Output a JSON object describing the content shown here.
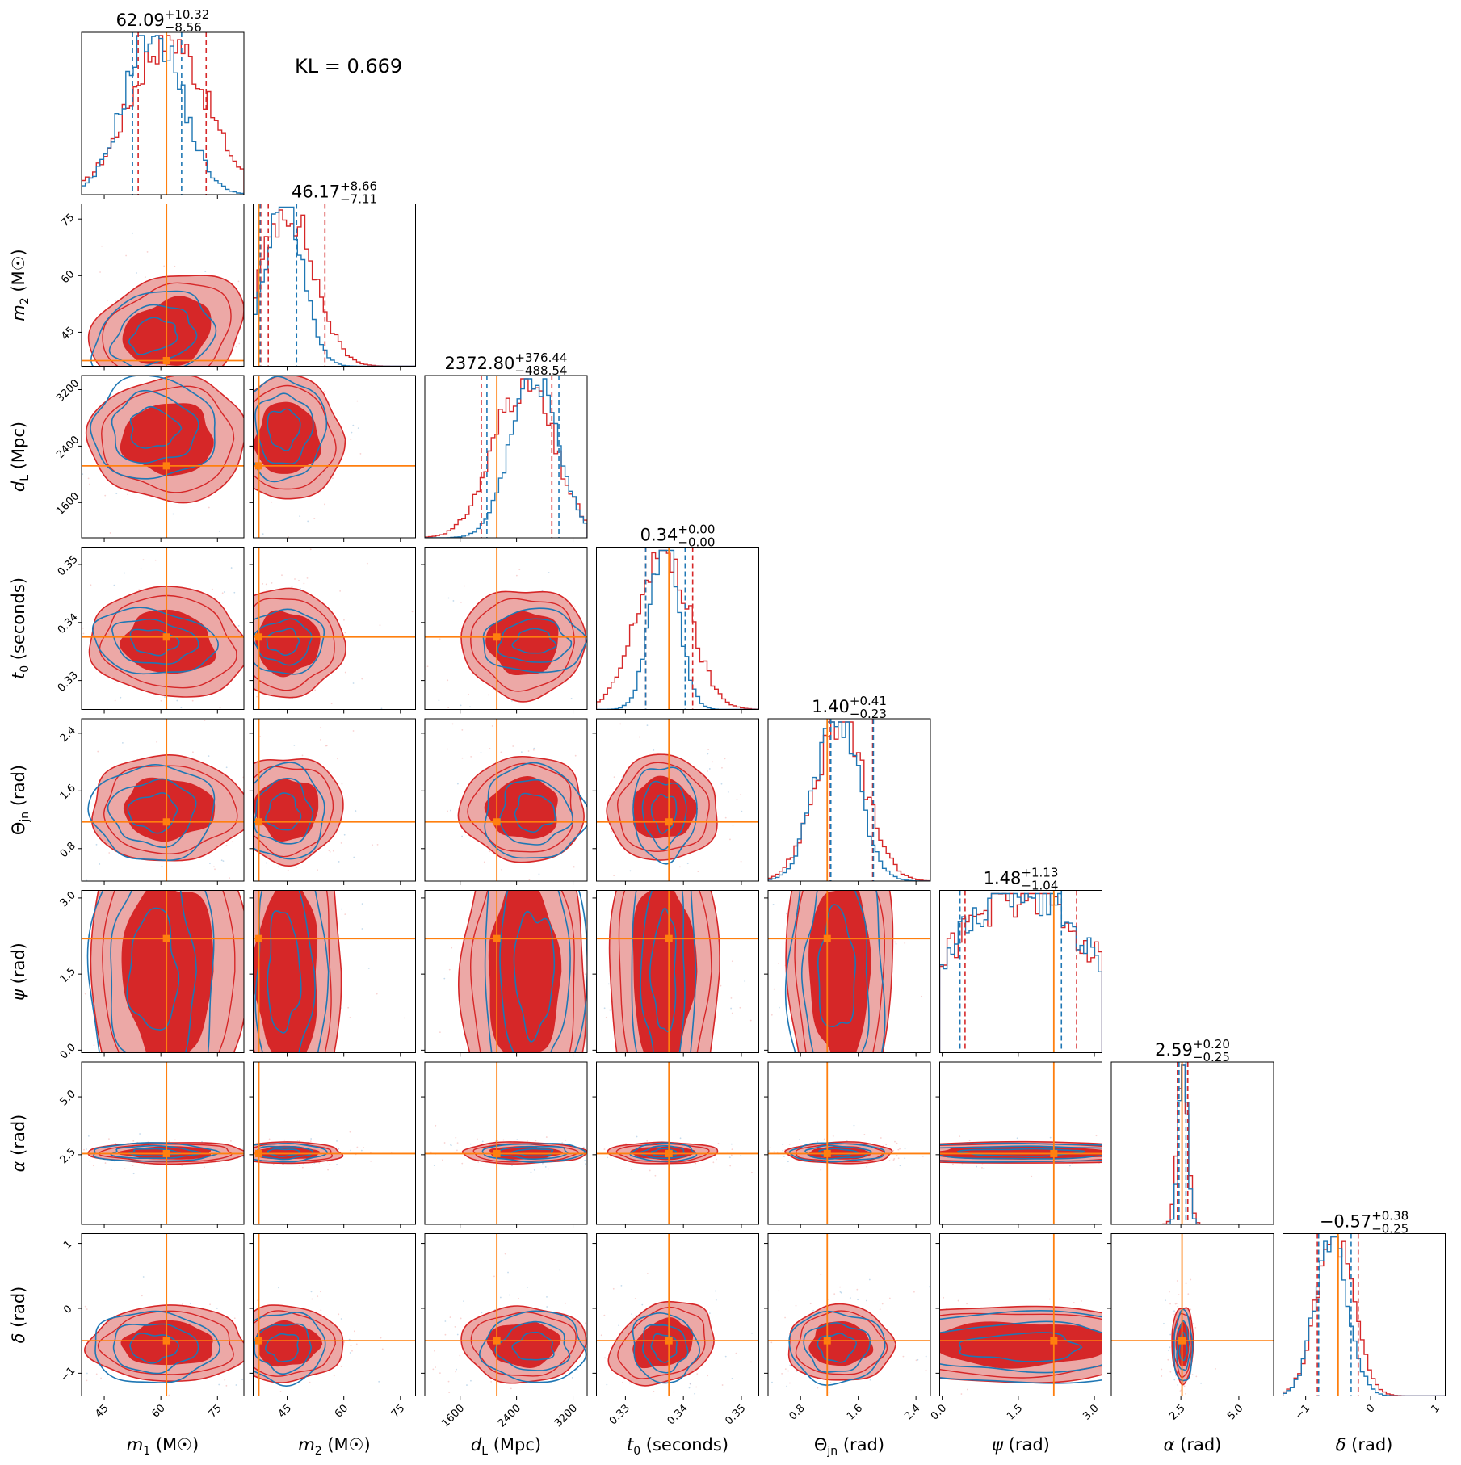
{
  "kl_text": "KL = 0.669",
  "colors": {
    "series_a": "#d62728",
    "series_a_fill_light": "#eca8a6",
    "series_b": "#1f77b4",
    "truth": "#ff7f0e"
  },
  "parameters": [
    {
      "id": "m1",
      "label": "m₁ (M☉)",
      "title_main": "62.09",
      "title_sup": "+10.32",
      "title_sub": "−8.56",
      "lim": [
        39,
        82
      ],
      "ticks": [
        45,
        60,
        75
      ],
      "tick_labels": [
        "45",
        "60",
        "75"
      ],
      "truth": 61.5
    },
    {
      "id": "m2",
      "label": "m₂ (M☉)",
      "title_main": "46.17",
      "title_sup": "+8.66",
      "title_sub": "−7.11",
      "lim": [
        36,
        79
      ],
      "ticks": [
        45,
        60,
        75
      ],
      "tick_labels": [
        "45",
        "60",
        "75"
      ],
      "truth": 37.5
    },
    {
      "id": "dL",
      "label": "d_L (Mpc)",
      "title_main": "2372.80",
      "title_sup": "+376.44",
      "title_sub": "−488.54",
      "lim": [
        1100,
        3400
      ],
      "ticks": [
        1600,
        2400,
        3200
      ],
      "tick_labels": [
        "1600",
        "2400",
        "3200"
      ],
      "truth": 2120
    },
    {
      "id": "t0",
      "label": "t₀ (seconds)",
      "title_main": "0.34",
      "title_sup": "+0.00",
      "title_sub": "−0.00",
      "lim": [
        0.325,
        0.353
      ],
      "ticks": [
        0.33,
        0.34,
        0.35
      ],
      "tick_labels": [
        "0.33",
        "0.34",
        "0.35"
      ],
      "truth": 0.3375
    },
    {
      "id": "theta",
      "label": "Θ_jn (rad)",
      "title_main": "1.40",
      "title_sup": "+0.41",
      "title_sub": "−0.23",
      "lim": [
        0.35,
        2.6
      ],
      "ticks": [
        0.8,
        1.6,
        2.4
      ],
      "tick_labels": [
        "0.8",
        "1.6",
        "2.4"
      ],
      "truth": 1.17
    },
    {
      "id": "psi",
      "label": "ψ (rad)",
      "title_main": "1.48",
      "title_sup": "+1.13",
      "title_sub": "−1.04",
      "lim": [
        -0.05,
        3.15
      ],
      "ticks": [
        0.0,
        1.5,
        3.0
      ],
      "tick_labels": [
        "0.0",
        "1.5",
        "3.0"
      ],
      "truth": 2.2
    },
    {
      "id": "alpha",
      "label": "α (rad)",
      "title_main": "2.59",
      "title_sup": "+0.20",
      "title_sub": "−0.25",
      "lim": [
        -0.5,
        6.5
      ],
      "ticks": [
        2.5,
        5.0
      ],
      "tick_labels": [
        "2.5",
        "5.0"
      ],
      "truth": 2.55
    },
    {
      "id": "delta",
      "label": "δ (rad)",
      "title_main": "−0.57",
      "title_sup": "+0.38",
      "title_sub": "−0.25",
      "lim": [
        -1.35,
        1.15
      ],
      "ticks": [
        -1,
        0,
        1
      ],
      "tick_labels": [
        "−1",
        "0",
        "1"
      ],
      "truth": -0.5
    }
  ],
  "chart_data": {
    "type": "corner",
    "n_params": 8,
    "series": [
      {
        "name": "",
        "color": "#d62728",
        "style": "filled contours + step histogram"
      },
      {
        "name": "",
        "color": "#1f77b4",
        "style": "contour lines + step histogram"
      }
    ],
    "truth_values": {
      "m1": 61.5,
      "m2": 37.5,
      "dL": 2120,
      "t0": 0.3375,
      "theta": 1.17,
      "psi": 2.2,
      "alpha": 2.55,
      "delta": -0.5
    },
    "summaries": [
      {
        "param": "m1",
        "median": 62.09,
        "plus": 10.32,
        "minus": 8.56
      },
      {
        "param": "m2",
        "median": 46.17,
        "plus": 8.66,
        "minus": 7.11
      },
      {
        "param": "dL",
        "median": 2372.8,
        "plus": 376.44,
        "minus": 488.54
      },
      {
        "param": "t0",
        "median": 0.34,
        "plus": 0.0,
        "minus": 0.0
      },
      {
        "param": "theta",
        "median": 1.4,
        "plus": 0.41,
        "minus": 0.23
      },
      {
        "param": "psi",
        "median": 1.48,
        "plus": 1.13,
        "minus": 1.04
      },
      {
        "param": "alpha",
        "median": 2.59,
        "plus": 0.2,
        "minus": 0.25
      },
      {
        "param": "delta",
        "median": -0.57,
        "plus": 0.38,
        "minus": 0.25
      }
    ],
    "marginals": {
      "m1": {
        "a": {
          "center": 62,
          "sd": 10,
          "quantiles": [
            54,
            72
          ]
        },
        "b": {
          "center": 58,
          "sd": 7.5,
          "quantiles": [
            52.5,
            65.5
          ]
        }
      },
      "m2": {
        "a": {
          "center": 45,
          "sd": 7,
          "quantiles": [
            38,
            40,
            55
          ]
        },
        "b": {
          "center": 44,
          "sd": 5,
          "quantiles": [
            37.8,
            47.5
          ]
        }
      },
      "dL": {
        "a": {
          "center": 2500,
          "sd": 420,
          "quantiles": [
            1900,
            2900
          ]
        },
        "b": {
          "center": 2650,
          "sd": 330,
          "quantiles": [
            1980,
            3000
          ]
        }
      },
      "t0": {
        "a": {
          "center": 0.3365,
          "sd": 0.0045,
          "quantiles": [
            0.3335,
            0.3416
          ]
        },
        "b": {
          "center": 0.3367,
          "sd": 0.0025,
          "quantiles": [
            0.3335,
            0.3403
          ]
        }
      },
      "theta": {
        "a": {
          "center": 1.35,
          "sd": 0.35,
          "quantiles": [
            1.2,
            1.8
          ]
        },
        "b": {
          "center": 1.3,
          "sd": 0.3,
          "quantiles": [
            1.22,
            1.81
          ]
        }
      },
      "psi": {
        "a": {
          "center": 1.55,
          "sd": 1.5,
          "quantiles": [
            0.45,
            2.65
          ]
        },
        "b": {
          "center": 1.55,
          "sd": 1.4,
          "quantiles": [
            0.35,
            2.35
          ]
        }
      },
      "alpha": {
        "a": {
          "center": 2.58,
          "sd": 0.22,
          "quantiles": [
            2.35,
            2.8
          ]
        },
        "b": {
          "center": 2.6,
          "sd": 0.18,
          "quantiles": [
            2.42,
            2.72
          ]
        }
      },
      "delta": {
        "a": {
          "center": -0.55,
          "sd": 0.28,
          "quantiles": [
            -0.82,
            -0.19
          ]
        },
        "b": {
          "center": -0.6,
          "sd": 0.25,
          "quantiles": [
            -0.8,
            -0.3
          ]
        }
      }
    },
    "grid": false,
    "legend": "none"
  }
}
